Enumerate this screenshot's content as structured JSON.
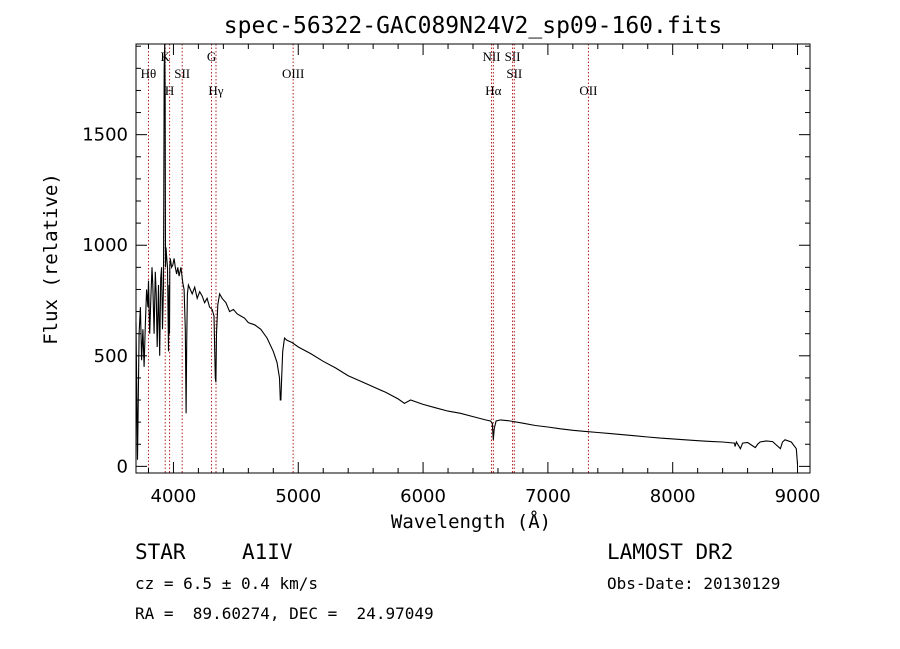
{
  "chart_data": {
    "type": "line",
    "title": "spec-56322-GAC089N24V2_sp09-160.fits",
    "xlabel": "Wavelength (Å)",
    "ylabel": "Flux (relative)",
    "xlim": [
      3700,
      9100
    ],
    "ylim": [
      -30,
      1910
    ],
    "x_ticks": [
      4000,
      5000,
      6000,
      7000,
      8000,
      9000
    ],
    "y_ticks": [
      0,
      500,
      1000,
      1500
    ],
    "x_minor_step": 200,
    "y_minor_step": 100,
    "grid": false,
    "series": [
      {
        "x": [
          3700,
          3712,
          3725,
          3735,
          3745,
          3755,
          3765,
          3775,
          3785,
          3795,
          3800,
          3810,
          3820,
          3828,
          3835,
          3845,
          3855,
          3862,
          3870,
          3880,
          3890,
          3898,
          3905,
          3912,
          3920,
          3926,
          3930,
          3933,
          3936,
          3940,
          3945,
          3952,
          3960,
          3965,
          3968,
          3971,
          3975,
          3985,
          3995,
          4005,
          4015,
          4025,
          4035,
          4045,
          4060,
          4075,
          4085,
          4095,
          4101,
          4106,
          4112,
          4120,
          4135,
          4150,
          4170,
          4190,
          4210,
          4230,
          4250,
          4270,
          4290,
          4310,
          4325,
          4335,
          4340,
          4345,
          4355,
          4370,
          4390,
          4420,
          4450,
          4480,
          4510,
          4540,
          4570,
          4600,
          4650,
          4700,
          4750,
          4800,
          4830,
          4850,
          4856,
          4861,
          4866,
          4875,
          4890,
          4910,
          4950,
          5000,
          5100,
          5200,
          5300,
          5400,
          5500,
          5600,
          5700,
          5800,
          5850,
          5900,
          6000,
          6100,
          6200,
          6300,
          6400,
          6500,
          6540,
          6555,
          6563,
          6570,
          6585,
          6620,
          6700,
          6800,
          6900,
          7000,
          7100,
          7200,
          7300,
          7400,
          7500,
          7600,
          7700,
          7800,
          7900,
          8000,
          8100,
          8200,
          8300,
          8400,
          8495,
          8500,
          8510,
          8542,
          8560,
          8600,
          8662,
          8680,
          8700,
          8750,
          8800,
          8863,
          8880,
          8900,
          8950,
          8990,
          9000
        ],
        "y": [
          650,
          30,
          600,
          720,
          480,
          620,
          450,
          650,
          800,
          720,
          840,
          600,
          780,
          900,
          820,
          600,
          880,
          780,
          540,
          820,
          500,
          850,
          900,
          620,
          820,
          1800,
          1920,
          1700,
          900,
          990,
          950,
          900,
          520,
          820,
          600,
          900,
          940,
          900,
          910,
          940,
          900,
          870,
          900,
          860,
          900,
          830,
          800,
          620,
          240,
          560,
          780,
          820,
          800,
          780,
          810,
          760,
          790,
          770,
          740,
          760,
          720,
          710,
          680,
          400,
          380,
          600,
          730,
          780,
          760,
          740,
          700,
          710,
          690,
          680,
          670,
          650,
          640,
          620,
          580,
          520,
          470,
          400,
          300,
          300,
          380,
          520,
          580,
          570,
          560,
          540,
          510,
          475,
          445,
          410,
          385,
          360,
          335,
          305,
          285,
          300,
          280,
          265,
          250,
          240,
          225,
          210,
          205,
          195,
          120,
          170,
          205,
          210,
          205,
          195,
          185,
          178,
          170,
          163,
          158,
          153,
          148,
          143,
          138,
          133,
          128,
          124,
          120,
          116,
          113,
          110,
          105,
          90,
          110,
          80,
          105,
          108,
          85,
          100,
          110,
          115,
          112,
          80,
          110,
          120,
          110,
          80,
          10
        ]
      }
    ],
    "line_marks": [
      {
        "wavelength": 3800,
        "label": "Hθ",
        "row": 2
      },
      {
        "wavelength": 3934,
        "label": "K",
        "row": 1
      },
      {
        "wavelength": 3969,
        "label": "H",
        "row": 3
      },
      {
        "wavelength": 4070,
        "label": "SII",
        "row": 2
      },
      {
        "wavelength": 4305,
        "label": "G",
        "row": 1
      },
      {
        "wavelength": 4341,
        "label": "Hγ",
        "row": 3
      },
      {
        "wavelength": 4959,
        "label": "OIII",
        "row": 2
      },
      {
        "wavelength": 6548,
        "label": "NII",
        "row": 1
      },
      {
        "wavelength": 6563,
        "label": "Hα",
        "row": 3
      },
      {
        "wavelength": 6717,
        "label": "SII",
        "row": 1
      },
      {
        "wavelength": 6731,
        "label": "SII",
        "row": 2
      },
      {
        "wavelength": 7325,
        "label": "OII",
        "row": 3
      }
    ],
    "line_mark_color": "#b22222"
  },
  "info": {
    "object_class": "STAR",
    "subclass": "A1IV",
    "cz": "cz = 6.5 ± 0.4 km/s",
    "coords": "RA =  89.60274, DEC =  24.97049",
    "survey": "LAMOST DR2",
    "obs_date": "Obs-Date: 20130129"
  }
}
